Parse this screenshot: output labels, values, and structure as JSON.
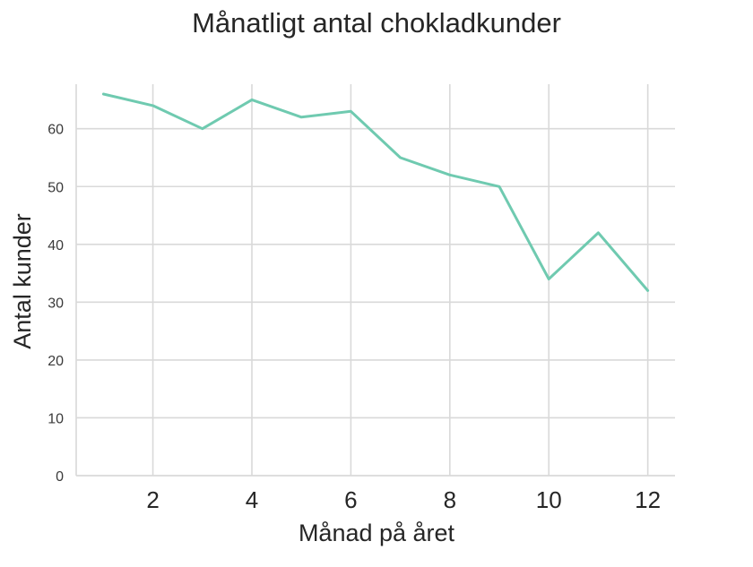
{
  "chart_data": {
    "type": "line",
    "title": "Månatligt antal chokladkunder",
    "xlabel": "Månad på året",
    "ylabel": "Antal kunder",
    "x": [
      1,
      2,
      3,
      4,
      5,
      6,
      7,
      8,
      9,
      10,
      11,
      12
    ],
    "series": [
      {
        "values": [
          66,
          64,
          60,
          65,
          62,
          63,
          55,
          52,
          50,
          34,
          42,
          32
        ]
      }
    ],
    "x_ticks": [
      2,
      4,
      6,
      8,
      10,
      12
    ],
    "y_ticks": [
      0,
      10,
      20,
      30,
      40,
      50,
      60
    ],
    "xlim": [
      0.45,
      12.55
    ],
    "ylim": [
      0,
      67.7
    ],
    "grid": true,
    "colors": {
      "line": "#6fcab0",
      "grid": "#d9d9d9",
      "text": "#262626",
      "tick_text": "#3a3a3a"
    }
  }
}
